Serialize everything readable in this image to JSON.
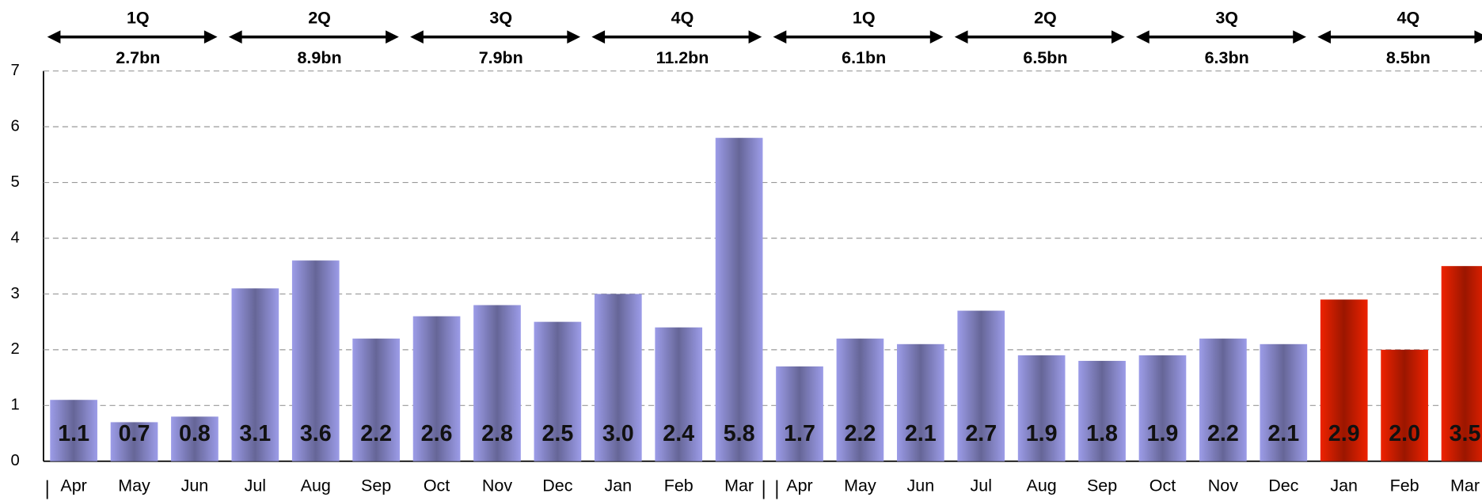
{
  "chart_data": {
    "type": "bar",
    "categories": [
      "Apr",
      "May",
      "Jun",
      "Jul",
      "Aug",
      "Sep",
      "Oct",
      "Nov",
      "Dec",
      "Jan",
      "Feb",
      "Mar",
      "Apr",
      "May",
      "Jun",
      "Jul",
      "Aug",
      "Sep",
      "Oct",
      "Nov",
      "Dec",
      "Jan",
      "Feb",
      "Mar"
    ],
    "values": [
      1.1,
      0.7,
      0.8,
      3.1,
      3.6,
      2.2,
      2.6,
      2.8,
      2.5,
      3.0,
      2.4,
      5.8,
      1.7,
      2.2,
      2.1,
      2.7,
      1.9,
      1.8,
      1.9,
      2.2,
      2.1,
      2.9,
      2.0,
      3.5
    ],
    "value_labels": [
      "1.1",
      "0.7",
      "0.8",
      "3.1",
      "3.6",
      "2.2",
      "2.6",
      "2.8",
      "2.5",
      "3.0",
      "2.4",
      "5.8",
      "1.7",
      "2.2",
      "2.1",
      "2.7",
      "1.9",
      "1.8",
      "1.9",
      "2.2",
      "2.1",
      "2.9",
      "2.0",
      "3.5"
    ],
    "colors": [
      "#9c9ce8",
      "#9c9ce8",
      "#9c9ce8",
      "#9c9ce8",
      "#9c9ce8",
      "#9c9ce8",
      "#9c9ce8",
      "#9c9ce8",
      "#9c9ce8",
      "#9c9ce8",
      "#9c9ce8",
      "#9c9ce8",
      "#9c9ce8",
      "#9c9ce8",
      "#9c9ce8",
      "#9c9ce8",
      "#9c9ce8",
      "#9c9ce8",
      "#9c9ce8",
      "#9c9ce8",
      "#9c9ce8",
      "#ee2200",
      "#ee2200",
      "#ee2200"
    ],
    "ylim": [
      0,
      7
    ],
    "yticks": [
      0,
      1,
      2,
      3,
      4,
      5,
      6,
      7
    ],
    "grid": true,
    "quarters": [
      {
        "name": "1Q",
        "total": "2.7bn"
      },
      {
        "name": "2Q",
        "total": "8.9bn"
      },
      {
        "name": "3Q",
        "total": "7.9bn"
      },
      {
        "name": "4Q",
        "total": "11.2bn"
      },
      {
        "name": "1Q",
        "total": "6.1bn"
      },
      {
        "name": "2Q",
        "total": "6.5bn"
      },
      {
        "name": "3Q",
        "total": "6.3bn"
      },
      {
        "name": "4Q",
        "total": "8.5bn"
      }
    ]
  }
}
